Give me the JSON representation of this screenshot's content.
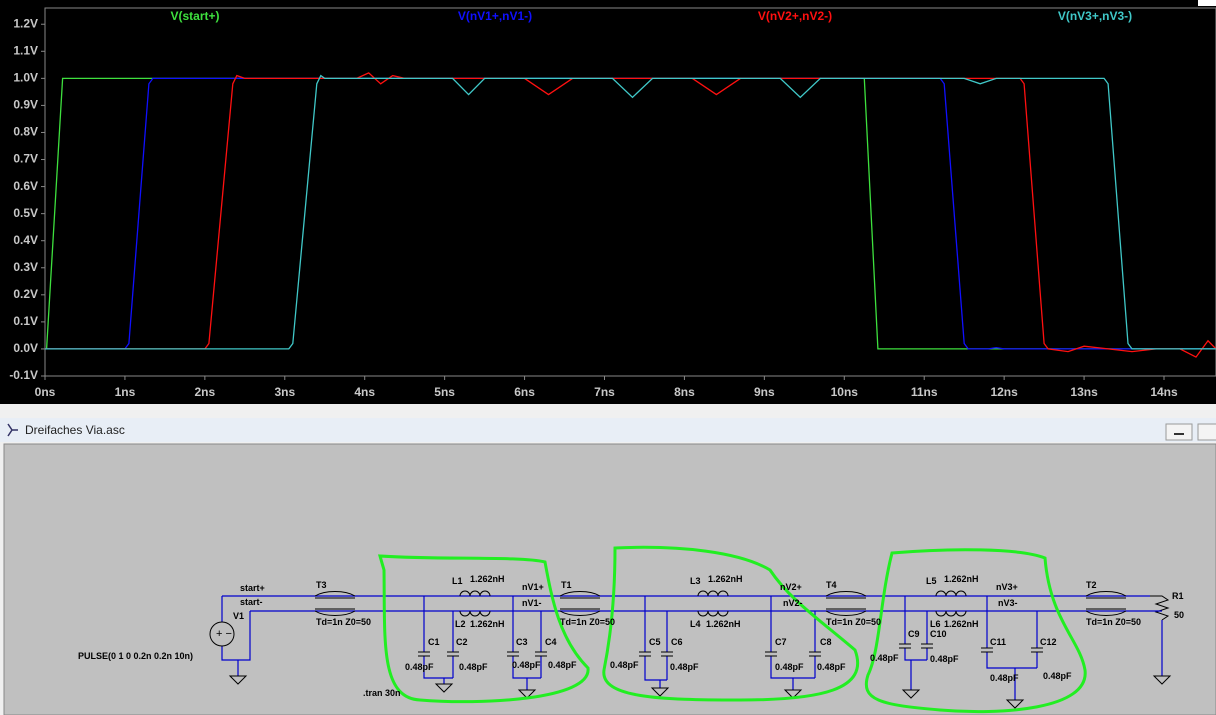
{
  "chart_data": {
    "type": "line",
    "grid": false,
    "xlim": [
      0,
      14.65
    ],
    "ylim": [
      -0.1,
      1.26
    ],
    "xticks": [
      {
        "value": 0,
        "label": "0ns"
      },
      {
        "value": 1,
        "label": "1ns"
      },
      {
        "value": 2,
        "label": "2ns"
      },
      {
        "value": 3,
        "label": "3ns"
      },
      {
        "value": 4,
        "label": "4ns"
      },
      {
        "value": 5,
        "label": "5ns"
      },
      {
        "value": 6,
        "label": "6ns"
      },
      {
        "value": 7,
        "label": "7ns"
      },
      {
        "value": 8,
        "label": "8ns"
      },
      {
        "value": 9,
        "label": "9ns"
      },
      {
        "value": 10,
        "label": "10ns"
      },
      {
        "value": 11,
        "label": "11ns"
      },
      {
        "value": 12,
        "label": "12ns"
      },
      {
        "value": 13,
        "label": "13ns"
      },
      {
        "value": 14,
        "label": "14ns"
      }
    ],
    "yticks": [
      {
        "value": -0.1,
        "label": "-0.1V"
      },
      {
        "value": 0,
        "label": "0.0V"
      },
      {
        "value": 0.1,
        "label": "0.1V"
      },
      {
        "value": 0.2,
        "label": "0.2V"
      },
      {
        "value": 0.3,
        "label": "0.3V"
      },
      {
        "value": 0.4,
        "label": "0.4V"
      },
      {
        "value": 0.5,
        "label": "0.5V"
      },
      {
        "value": 0.6,
        "label": "0.6V"
      },
      {
        "value": 0.7,
        "label": "0.7V"
      },
      {
        "value": 0.8,
        "label": "0.8V"
      },
      {
        "value": 0.9,
        "label": "0.9V"
      },
      {
        "value": 1.0,
        "label": "1.0V"
      },
      {
        "value": 1.1,
        "label": "1.1V"
      },
      {
        "value": 1.2,
        "label": "1.2V"
      }
    ],
    "series": [
      {
        "name": "V(start+)",
        "color": "#3ee03e",
        "x": [
          0,
          0.02,
          0.22,
          10.2,
          10.25,
          10.42,
          14.65
        ],
        "values": [
          0,
          0,
          1,
          1,
          1,
          0,
          0
        ]
      },
      {
        "name": "V(nV1+,nV1-)",
        "color": "#1010ff",
        "x": [
          0,
          1.0,
          1.05,
          1.3,
          1.35,
          1.38,
          11.2,
          11.25,
          11.5,
          11.55,
          11.8,
          11.9,
          12,
          14.65
        ],
        "values": [
          0,
          0,
          0.02,
          0.98,
          1.0,
          1.0,
          1.0,
          0.98,
          0.02,
          0,
          0,
          0.005,
          0,
          0
        ]
      },
      {
        "name": "V(nV2+,nV2-)",
        "color": "#ff1010",
        "x": [
          0,
          2.0,
          2.05,
          2.35,
          2.4,
          2.5,
          3.9,
          4.05,
          4.2,
          4.35,
          4.5,
          6.0,
          6.3,
          6.6,
          8.1,
          8.4,
          8.7,
          12.2,
          12.25,
          12.5,
          12.55,
          12.8,
          13.0,
          13.3,
          13.6,
          13.9,
          14.2,
          14.4,
          14.55,
          14.65
        ],
        "values": [
          0,
          0,
          0.02,
          0.98,
          1.01,
          1.0,
          1.0,
          1.02,
          0.98,
          1.01,
          1.0,
          1.0,
          0.94,
          1.0,
          1.0,
          0.94,
          1.0,
          1.0,
          0.98,
          0.02,
          0,
          -0.01,
          0.01,
          0,
          -0.01,
          0,
          0,
          -0.03,
          0.03,
          0
        ]
      },
      {
        "name": "V(nV3+,nV3-)",
        "color": "#40c8c8",
        "x": [
          0,
          3.05,
          3.1,
          3.4,
          3.45,
          3.5,
          5.1,
          5.3,
          5.5,
          7.1,
          7.35,
          7.6,
          9.2,
          9.45,
          9.7,
          11.5,
          11.7,
          11.9,
          13.25,
          13.3,
          13.55,
          13.6,
          14.65
        ],
        "values": [
          0,
          0,
          0.02,
          0.98,
          1.01,
          1.0,
          1.0,
          0.94,
          1.0,
          1.0,
          0.93,
          1.0,
          1.0,
          0.93,
          1.0,
          1.0,
          0.98,
          1.0,
          1.0,
          0.98,
          0.02,
          0,
          0
        ]
      }
    ]
  },
  "window": {
    "title": "Dreifaches Via.asc"
  },
  "schematic": {
    "labels": [
      "start+",
      "start-",
      "V1",
      "PULSE(0 1 0 0.2n 0.2n 10n)",
      "T3",
      "Td=1n Z0=50",
      "L1",
      "1.262nH",
      "L2",
      "1.262nH",
      "nV1+",
      "nV1-",
      "C1",
      "C2",
      "C3",
      "C4",
      "0.48pF",
      "0.48pF",
      "0.48pF",
      "0.48pF",
      "T1",
      "Td=1n Z0=50",
      "L3",
      "1.262nH",
      "L4",
      "1.262nH",
      "nV2+",
      "nV2-",
      "C5",
      "C6",
      "C7",
      "C8",
      "0.48pF",
      "0.48pF",
      "0.48pF",
      "0.48pF",
      "T4",
      "Td=1n Z0=50",
      "L5",
      "1.262nH",
      "L6",
      "1.262nH",
      "nV3+",
      "nV3-",
      "C9",
      "C10",
      "C11",
      "C12",
      "0.48pF",
      "0.48pF",
      "0.48pF",
      "0.48pF",
      "T2",
      "Td=1n Z0=50",
      "R1",
      "50",
      ".tran 30n"
    ]
  }
}
